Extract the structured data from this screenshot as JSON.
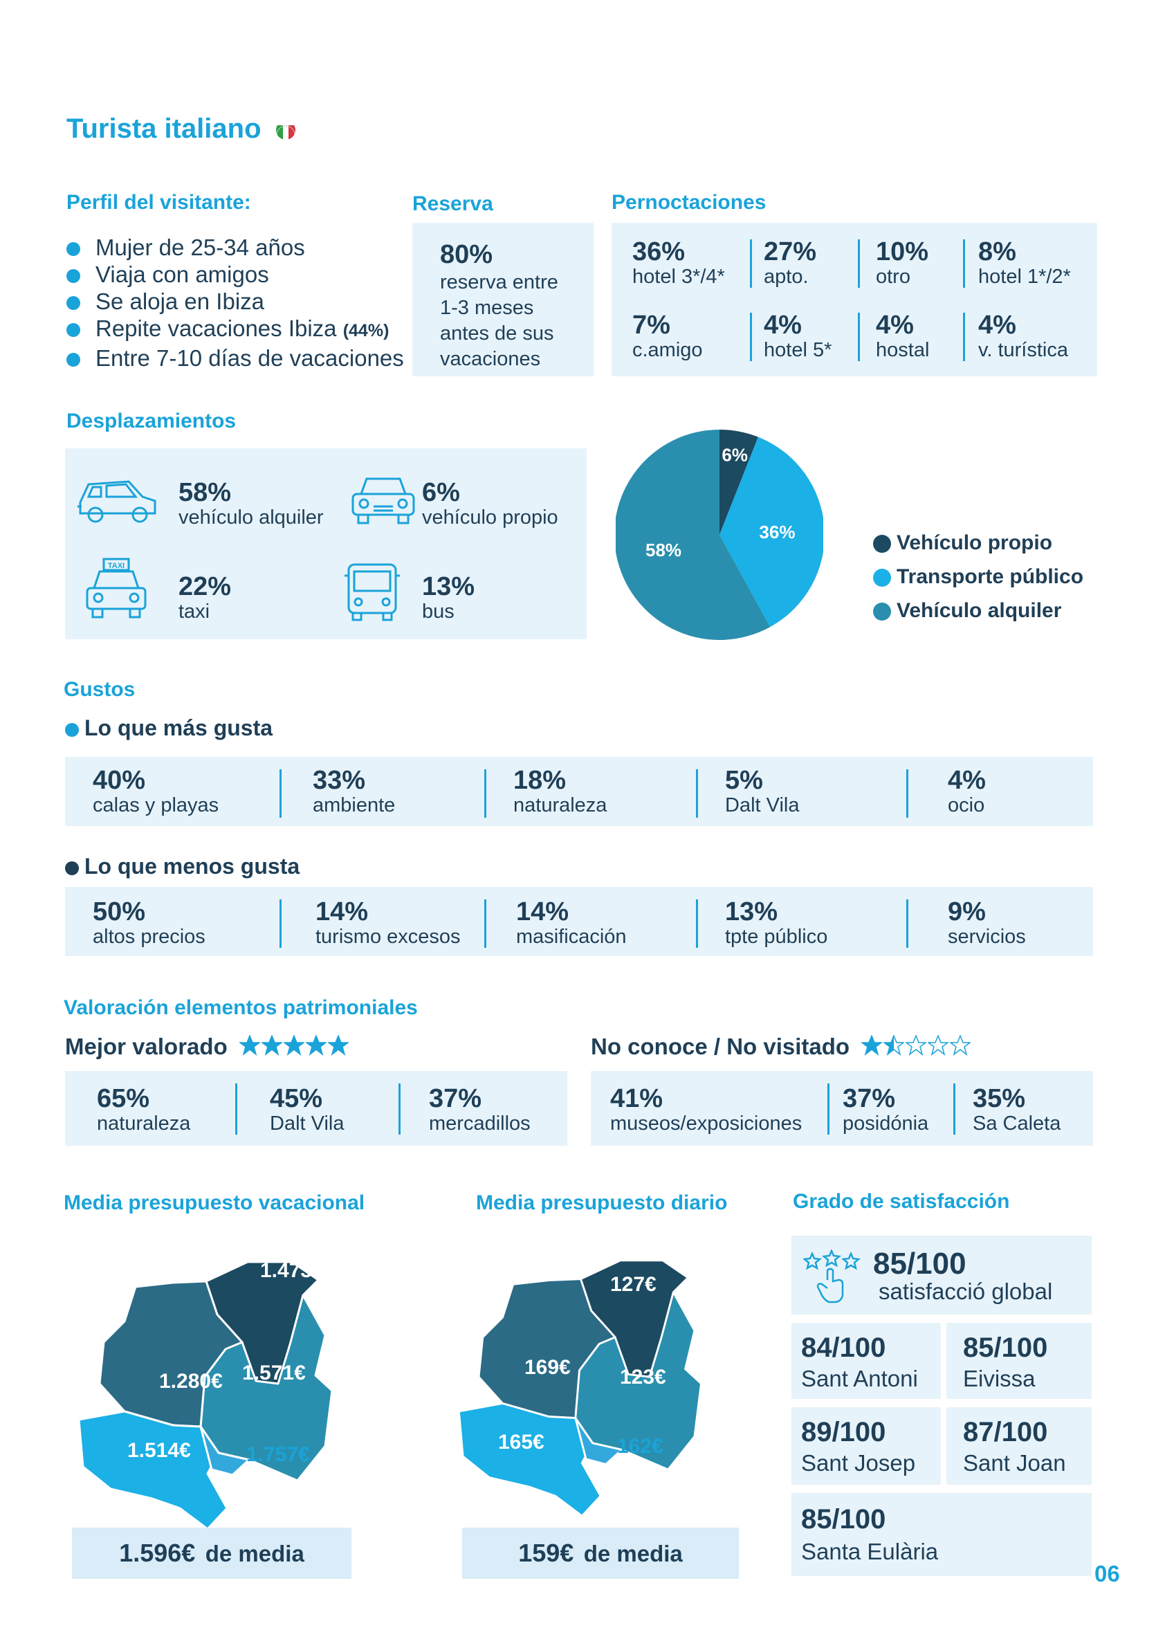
{
  "title": "Turista italiano",
  "profile": {
    "heading": "Perfil del visitante:",
    "items": [
      "Mujer de 25-34 años",
      "Viaja con amigos",
      "Se aloja en Ibiza",
      "Repite vacaciones Ibiza",
      "Entre 7-10 días de vacaciones"
    ],
    "repeat_pct": "(44%)"
  },
  "reserva": {
    "heading": "Reserva",
    "pct": "80%",
    "text": [
      "reserva entre",
      "1-3 meses",
      "antes de sus",
      "vacaciones"
    ]
  },
  "pernoctaciones": {
    "heading": "Pernoctaciones",
    "items": [
      {
        "pct": "36%",
        "label": "hotel 3*/4*"
      },
      {
        "pct": "27%",
        "label": "apto."
      },
      {
        "pct": "10%",
        "label": "otro"
      },
      {
        "pct": "8%",
        "label": "hotel 1*/2*"
      },
      {
        "pct": "7%",
        "label": "c.amigo"
      },
      {
        "pct": "4%",
        "label": "hotel 5*"
      },
      {
        "pct": "4%",
        "label": "hostal"
      },
      {
        "pct": "4%",
        "label": "v. turística"
      }
    ]
  },
  "desplazamientos": {
    "heading": "Desplazamientos",
    "items": [
      {
        "pct": "58%",
        "label": "vehículo alquiler",
        "icon": "car-icon"
      },
      {
        "pct": "6%",
        "label": "vehículo propio",
        "icon": "car-front-icon"
      },
      {
        "pct": "22%",
        "label": "taxi",
        "icon": "taxi-icon"
      },
      {
        "pct": "13%",
        "label": "bus",
        "icon": "bus-icon"
      }
    ],
    "taxi_sign": "TAXI"
  },
  "chart_data": {
    "type": "pie",
    "categories": [
      "Vehículo propio",
      "Transporte público",
      "Vehículo alquiler"
    ],
    "values": [
      6,
      36,
      58
    ],
    "labels": [
      "6%",
      "36%",
      "58%"
    ],
    "colors": [
      "#1c4a61",
      "#1bb0e6",
      "#2a8fae"
    ],
    "legend_position": "right"
  },
  "gustos": {
    "heading": "Gustos",
    "mas": {
      "heading": "Lo que más gusta",
      "items": [
        {
          "pct": "40%",
          "label": "calas y playas"
        },
        {
          "pct": "33%",
          "label": "ambiente"
        },
        {
          "pct": "18%",
          "label": "naturaleza"
        },
        {
          "pct": "5%",
          "label": "Dalt Vila"
        },
        {
          "pct": "4%",
          "label": "ocio"
        }
      ]
    },
    "menos": {
      "heading": "Lo que menos gusta",
      "items": [
        {
          "pct": "50%",
          "label": "altos precios"
        },
        {
          "pct": "14%",
          "label": "turismo excesos"
        },
        {
          "pct": "14%",
          "label": "masificación"
        },
        {
          "pct": "13%",
          "label": "tpte público"
        },
        {
          "pct": "9%",
          "label": "servicios"
        }
      ]
    }
  },
  "valoracion": {
    "heading": "Valoración elementos patrimoniales",
    "mejor": {
      "heading": "Mejor valorado",
      "stars": 5,
      "items": [
        {
          "pct": "65%",
          "label": "naturaleza"
        },
        {
          "pct": "45%",
          "label": "Dalt Vila"
        },
        {
          "pct": "37%",
          "label": "mercadillos"
        }
      ]
    },
    "noconoce": {
      "heading": "No conoce / No visitado",
      "stars": 1.5,
      "items": [
        {
          "pct": "41%",
          "label": "museos/exposiciones"
        },
        {
          "pct": "37%",
          "label": "posidónia"
        },
        {
          "pct": "35%",
          "label": "Sa Caleta"
        }
      ]
    }
  },
  "presupuesto_vacacional": {
    "heading": "Media presupuesto vacacional",
    "values": {
      "santa_eularia": "1.473€",
      "sant_antoni": "1.280€",
      "sant_joan": "1.571€",
      "sant_josep": "1.514€",
      "eivissa": "1.757€"
    },
    "media_value": "1.596€",
    "media_label": "de media"
  },
  "presupuesto_diario": {
    "heading": "Media presupuesto diario",
    "values": {
      "santa_eularia": "127€",
      "sant_antoni": "169€",
      "sant_joan": "123€",
      "sant_josep": "165€",
      "eivissa": "162€"
    },
    "media_value": "159€",
    "media_label": "de media"
  },
  "satisfaccion": {
    "heading": "Grado de satisfacción",
    "global": {
      "score": "85/100",
      "label": "satisfacció global"
    },
    "items": [
      {
        "score": "84/100",
        "label": "Sant Antoni"
      },
      {
        "score": "85/100",
        "label": "Eivissa"
      },
      {
        "score": "89/100",
        "label": "Sant Josep"
      },
      {
        "score": "87/100",
        "label": "Sant Joan"
      },
      {
        "score": "85/100",
        "label": "Santa Eulària"
      }
    ]
  },
  "page_number": "06",
  "colors": {
    "accent": "#1aa3d9",
    "dark": "#1f3f57",
    "panel": "#e7f3fa"
  }
}
